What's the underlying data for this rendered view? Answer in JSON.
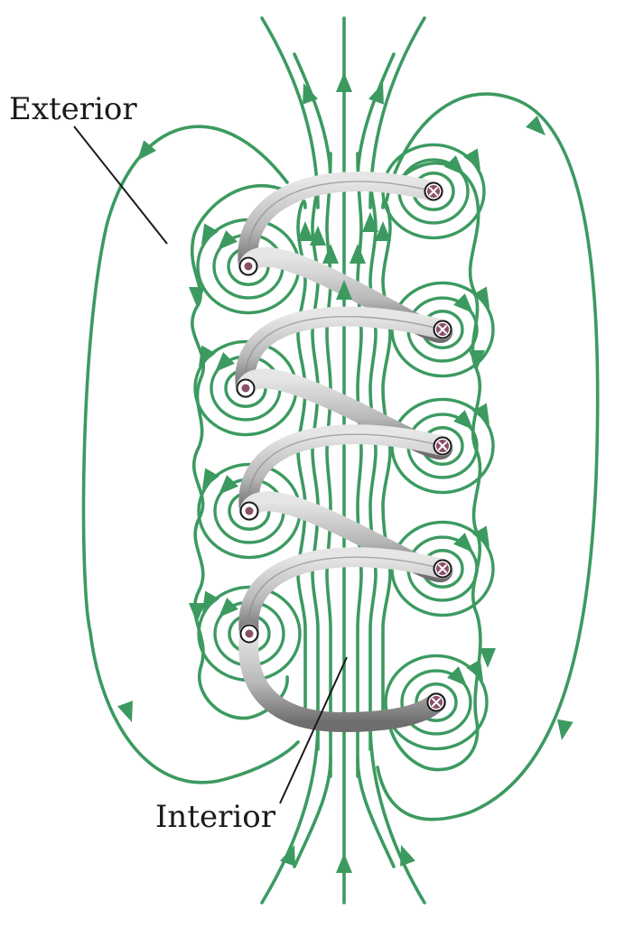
{
  "labels": {
    "exterior": "Exterior",
    "interior": "Interior"
  },
  "colors": {
    "field_line": "#3c9a60",
    "coil_light": "#e6e6e6",
    "coil_mid": "#b9b9b9",
    "coil_dark": "#6e6e6e",
    "conductor_fill": "#8b4f6a",
    "leader_line": "#1a1a1a",
    "background": "#ffffff"
  },
  "coil": {
    "turns": 4,
    "current_out_symbol": "dot",
    "current_in_symbol": "cross",
    "left_side_current_marks": 4,
    "right_side_current_marks": 5
  }
}
